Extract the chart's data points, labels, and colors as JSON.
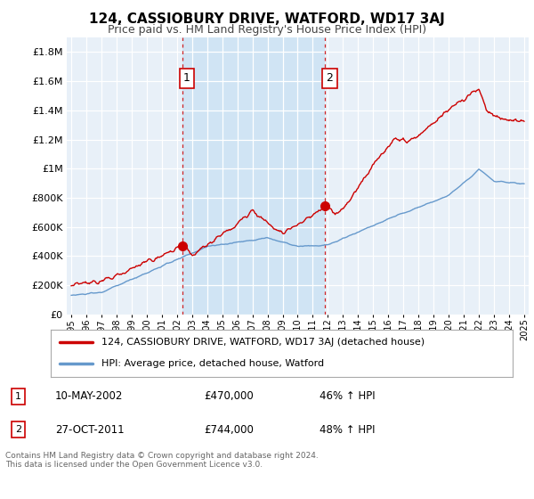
{
  "title": "124, CASSIOBURY DRIVE, WATFORD, WD17 3AJ",
  "subtitle": "Price paid vs. HM Land Registry's House Price Index (HPI)",
  "ytick_values": [
    0,
    200000,
    400000,
    600000,
    800000,
    1000000,
    1200000,
    1400000,
    1600000,
    1800000
  ],
  "ylim": [
    0,
    1900000
  ],
  "xlim_start": 1994.7,
  "xlim_end": 2025.3,
  "hpi_color": "#6699cc",
  "price_color": "#cc0000",
  "marker1_year": 2002.36,
  "marker1_value": 470000,
  "marker2_year": 2011.82,
  "marker2_value": 744000,
  "vline1_year": 2002.36,
  "vline2_year": 2011.82,
  "legend_house_label": "124, CASSIOBURY DRIVE, WATFORD, WD17 3AJ (detached house)",
  "legend_hpi_label": "HPI: Average price, detached house, Watford",
  "note1_date": "10-MAY-2002",
  "note1_price": "£470,000",
  "note1_hpi": "46% ↑ HPI",
  "note2_date": "27-OCT-2011",
  "note2_price": "£744,000",
  "note2_hpi": "48% ↑ HPI",
  "footer": "Contains HM Land Registry data © Crown copyright and database right 2024.\nThis data is licensed under the Open Government Licence v3.0.",
  "fig_bg_color": "#ffffff",
  "plot_bg_color": "#e8f0f8",
  "highlight_bg_color": "#d0e4f4",
  "grid_color": "#ffffff",
  "legend_bg": "#ffffff",
  "note_bg": "#ffffff"
}
